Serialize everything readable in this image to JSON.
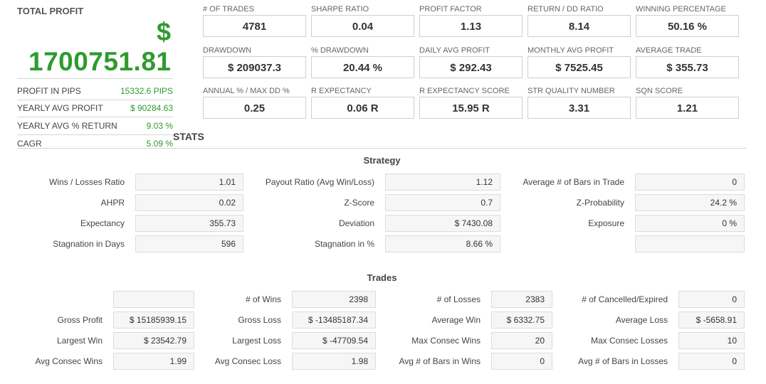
{
  "summary": {
    "title": "TOTAL PROFIT",
    "currency_symbol": "$",
    "total_profit": "1700751.81",
    "rows": [
      {
        "label": "PROFIT IN PIPS",
        "value": "15332.6 PIPS"
      },
      {
        "label": "YEARLY AVG PROFIT",
        "value": "$ 90284.63"
      },
      {
        "label": "YEARLY AVG % RETURN",
        "value": "9.03 %"
      },
      {
        "label": "CAGR",
        "value": "5.09 %"
      }
    ]
  },
  "metrics": [
    [
      {
        "label": "# OF TRADES",
        "value": "4781"
      },
      {
        "label": "SHARPE RATIO",
        "value": "0.04"
      },
      {
        "label": "PROFIT FACTOR",
        "value": "1.13"
      },
      {
        "label": "RETURN / DD RATIO",
        "value": "8.14"
      },
      {
        "label": "WINNING PERCENTAGE",
        "value": "50.16 %"
      }
    ],
    [
      {
        "label": "DRAWDOWN",
        "value": "$ 209037.3"
      },
      {
        "label": "% DRAWDOWN",
        "value": "20.44 %"
      },
      {
        "label": "DAILY AVG PROFIT",
        "value": "$ 292.43"
      },
      {
        "label": "MONTHLY AVG PROFIT",
        "value": "$ 7525.45"
      },
      {
        "label": "AVERAGE TRADE",
        "value": "$ 355.73"
      }
    ],
    [
      {
        "label": "ANNUAL % / MAX DD %",
        "value": "0.25"
      },
      {
        "label": "R EXPECTANCY",
        "value": "0.06 R"
      },
      {
        "label": "R EXPECTANCY SCORE",
        "value": "15.95 R"
      },
      {
        "label": "STR QUALITY NUMBER",
        "value": "3.31"
      },
      {
        "label": "SQN SCORE",
        "value": "1.21"
      }
    ]
  ],
  "stats": {
    "title": "STATS",
    "strategy": {
      "title": "Strategy",
      "rows": [
        [
          {
            "label": "Wins / Losses Ratio",
            "value": "1.01"
          },
          {
            "label": "Payout Ratio (Avg Win/Loss)",
            "value": "1.12"
          },
          {
            "label": "Average # of Bars in Trade",
            "value": "0"
          }
        ],
        [
          {
            "label": "AHPR",
            "value": "0.02"
          },
          {
            "label": "Z-Score",
            "value": "0.7"
          },
          {
            "label": "Z-Probability",
            "value": "24.2 %"
          }
        ],
        [
          {
            "label": "Expectancy",
            "value": "355.73"
          },
          {
            "label": "Deviation",
            "value": "$ 7430.08"
          },
          {
            "label": "Exposure",
            "value": "0 %"
          }
        ],
        [
          {
            "label": "Stagnation in Days",
            "value": "596"
          },
          {
            "label": "Stagnation in %",
            "value": "8.66 %"
          },
          {
            "label": "",
            "value": ""
          }
        ]
      ]
    },
    "trades": {
      "title": "Trades",
      "rows": [
        [
          {
            "label": "",
            "value": ""
          },
          {
            "label": "# of Wins",
            "value": "2398"
          },
          {
            "label": "# of Losses",
            "value": "2383"
          },
          {
            "label": "# of Cancelled/Expired",
            "value": "0"
          }
        ],
        [
          {
            "label": "Gross Profit",
            "value": "$ 15185939.15"
          },
          {
            "label": "Gross Loss",
            "value": "$ -13485187.34"
          },
          {
            "label": "Average Win",
            "value": "$ 6332.75"
          },
          {
            "label": "Average Loss",
            "value": "$ -5658.91"
          }
        ],
        [
          {
            "label": "Largest Win",
            "value": "$ 23542.79"
          },
          {
            "label": "Largest Loss",
            "value": "$ -47709.54"
          },
          {
            "label": "Max Consec Wins",
            "value": "20"
          },
          {
            "label": "Max Consec Losses",
            "value": "10"
          }
        ],
        [
          {
            "label": "Avg Consec Wins",
            "value": "1.99"
          },
          {
            "label": "Avg Consec Loss",
            "value": "1.98"
          },
          {
            "label": "Avg # of Bars in Wins",
            "value": "0"
          },
          {
            "label": "Avg # of Bars in Losses",
            "value": "0"
          }
        ]
      ]
    }
  }
}
